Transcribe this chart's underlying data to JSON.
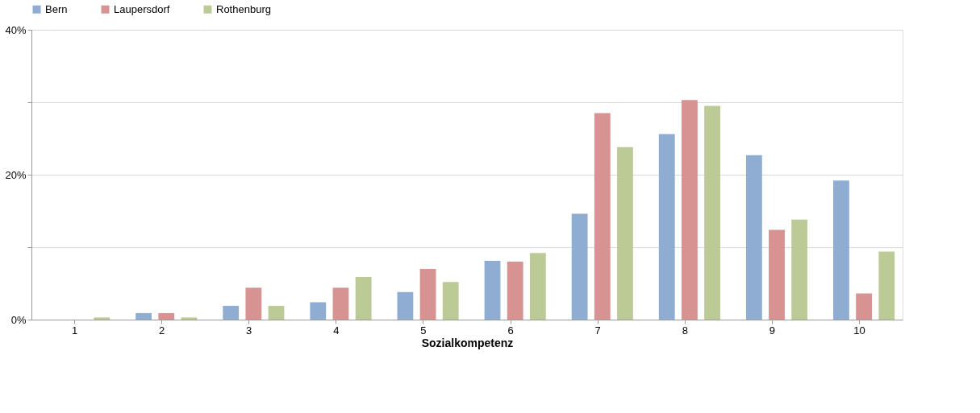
{
  "chart_data": {
    "type": "bar",
    "xlabel": "Sozialkompetenz",
    "categories": [
      "1",
      "2",
      "3",
      "4",
      "5",
      "6",
      "7",
      "8",
      "9",
      "10"
    ],
    "series": [
      {
        "name": "Bern",
        "color": "#8fadd2",
        "values": [
          0,
          0.9,
          1.9,
          2.4,
          3.8,
          8.1,
          14.6,
          25.6,
          22.7,
          19.2
        ]
      },
      {
        "name": "Laupersdorf",
        "color": "#d69391",
        "values": [
          0,
          0.9,
          4.4,
          4.4,
          7.0,
          8.0,
          28.5,
          30.3,
          12.4,
          3.6
        ]
      },
      {
        "name": "Rothenburg",
        "color": "#bccb95",
        "values": [
          0.3,
          0.3,
          1.9,
          5.9,
          5.2,
          9.2,
          23.8,
          29.5,
          13.8,
          9.4
        ]
      }
    ],
    "ylim": [
      0,
      40
    ],
    "yticks": [
      {
        "value": 0,
        "label": "0%"
      },
      {
        "value": 10,
        "label": null
      },
      {
        "value": 20,
        "label": "20%"
      },
      {
        "value": 30,
        "label": null
      },
      {
        "value": 40,
        "label": "40%"
      }
    ],
    "grid": "y",
    "legend": "top"
  }
}
